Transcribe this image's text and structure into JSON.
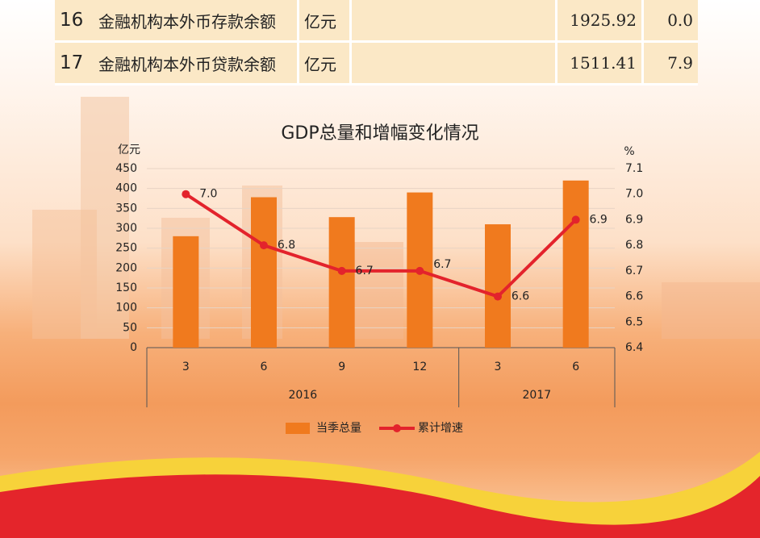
{
  "table": {
    "rows": [
      [
        "16",
        "金融机构本外币存款余额",
        "亿元",
        "1925.92",
        "0.0"
      ],
      [
        "17",
        "金融机构本外币贷款余额",
        "亿元",
        "1511.41",
        "7.9"
      ]
    ]
  },
  "chart_data": {
    "type": "bar-line",
    "title": "GDP总量和增幅变化情况",
    "y_label": "亿元",
    "y2_label": "%",
    "groups": [
      {
        "name": "2016",
        "categories": [
          "3",
          "6",
          "9",
          "12"
        ]
      },
      {
        "name": "2017",
        "categories": [
          "3",
          "6"
        ]
      }
    ],
    "series": [
      {
        "name": "当季总量",
        "type": "bar",
        "color": "#f07a1e",
        "values": [
          280,
          378,
          328,
          390,
          310,
          420
        ]
      },
      {
        "name": "累计增速",
        "type": "line",
        "axis": "y2",
        "color": "#e3232c",
        "values": [
          7.0,
          6.8,
          6.7,
          6.7,
          6.6,
          6.9
        ],
        "value_labels": [
          "7.0",
          "6.8",
          "6.7",
          "6.7",
          "6.6",
          "6.9"
        ]
      }
    ],
    "ylim": [
      0,
      450
    ],
    "yticks": [
      0,
      50,
      100,
      150,
      200,
      250,
      300,
      350,
      400,
      450
    ],
    "y2lim": [
      6.4,
      7.1
    ],
    "y2ticks": [
      6.4,
      6.5,
      6.6,
      6.7,
      6.8,
      6.9,
      {
        "value": 7.0,
        "label": "7.0"
      },
      7.1
    ],
    "grid": true,
    "legend": "bottom"
  }
}
